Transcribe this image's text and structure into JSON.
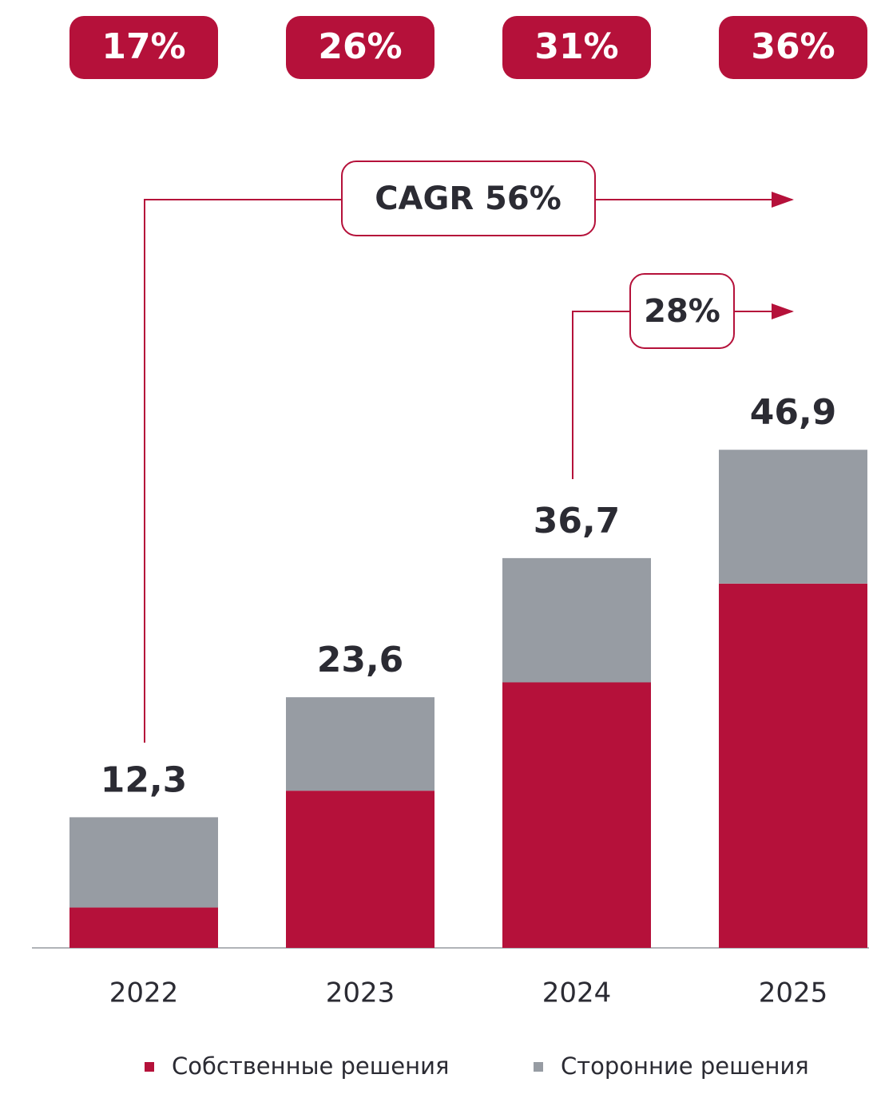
{
  "chart_data": {
    "type": "stacked_bar",
    "categories": [
      "2022",
      "2023",
      "2024",
      "2025"
    ],
    "series": [
      {
        "name": "Собственные решения",
        "color": "#b5113a",
        "values": [
          3.8,
          14.8,
          25.0,
          34.3
        ]
      },
      {
        "name": "Сторонние решения",
        "color": "#979ca3",
        "values": [
          8.5,
          8.8,
          11.7,
          12.6
        ]
      }
    ],
    "totals": [
      12.3,
      23.6,
      36.7,
      46.9
    ],
    "total_labels": [
      "12,3",
      "23,6",
      "36,7",
      "46,9"
    ],
    "top_labels": [
      "17%",
      "26%",
      "31%",
      "36%"
    ],
    "annotations": [
      "CAGR 56%",
      "28%"
    ],
    "ylim": [
      0,
      50
    ]
  }
}
